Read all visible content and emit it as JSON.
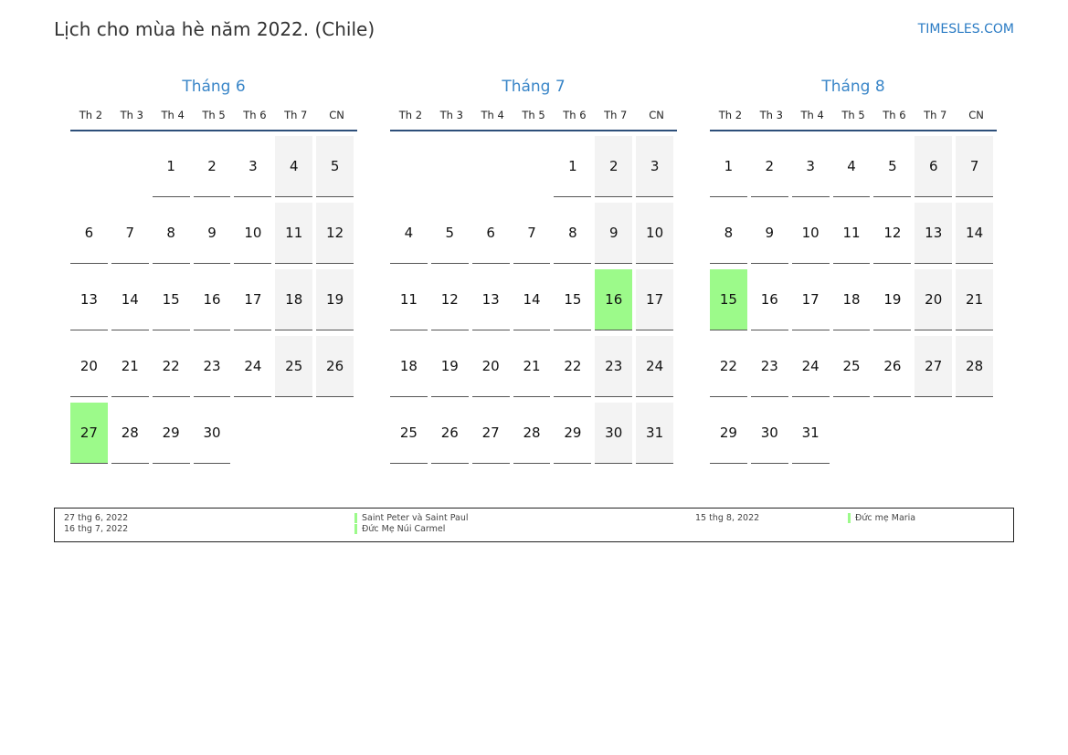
{
  "header": {
    "title": "Lịch cho mùa hè năm 2022. (Chile)",
    "brand": "TIMESLES.COM"
  },
  "colors": {
    "holiday": "#9cfa8a",
    "weekend": "#f3f3f3",
    "month_title": "#3a86c8"
  },
  "weekdays": [
    "Th 2",
    "Th 3",
    "Th 4",
    "Th 5",
    "Th 6",
    "Th 7",
    "CN"
  ],
  "months": [
    {
      "name": "Tháng 6",
      "weeks": [
        [
          null,
          null,
          1,
          2,
          3,
          4,
          5
        ],
        [
          6,
          7,
          8,
          9,
          10,
          11,
          12
        ],
        [
          13,
          14,
          15,
          16,
          17,
          18,
          19
        ],
        [
          20,
          21,
          22,
          23,
          24,
          25,
          26
        ],
        [
          27,
          28,
          29,
          30,
          null,
          null,
          null
        ]
      ],
      "holidays": [
        27
      ]
    },
    {
      "name": "Tháng 7",
      "weeks": [
        [
          null,
          null,
          null,
          null,
          1,
          2,
          3
        ],
        [
          4,
          5,
          6,
          7,
          8,
          9,
          10
        ],
        [
          11,
          12,
          13,
          14,
          15,
          16,
          17
        ],
        [
          18,
          19,
          20,
          21,
          22,
          23,
          24
        ],
        [
          25,
          26,
          27,
          28,
          29,
          30,
          31
        ]
      ],
      "holidays": [
        16
      ]
    },
    {
      "name": "Tháng 8",
      "weeks": [
        [
          1,
          2,
          3,
          4,
          5,
          6,
          7
        ],
        [
          8,
          9,
          10,
          11,
          12,
          13,
          14
        ],
        [
          15,
          16,
          17,
          18,
          19,
          20,
          21
        ],
        [
          22,
          23,
          24,
          25,
          26,
          27,
          28
        ],
        [
          29,
          30,
          31,
          null,
          null,
          null,
          null
        ]
      ],
      "holidays": [
        15
      ]
    }
  ],
  "legend": [
    {
      "date": "27 thg 6, 2022",
      "name": "Saint Peter và Saint Paul"
    },
    {
      "date": "16 thg 7, 2022",
      "name": "Đức Mẹ Núi Carmel"
    },
    {
      "date": "15 thg 8, 2022",
      "name": "Đức mẹ Maria"
    }
  ]
}
